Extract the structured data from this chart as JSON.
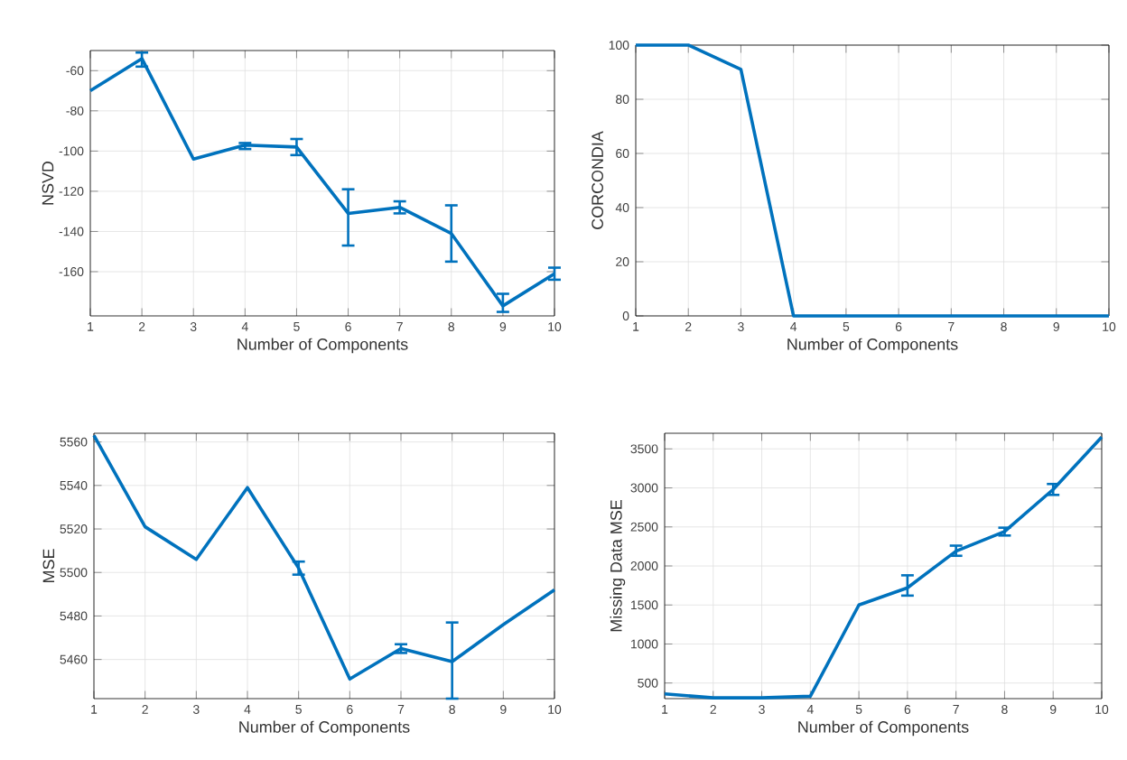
{
  "chart_data": [
    {
      "type": "line",
      "xlabel": "Number of Components",
      "ylabel": "NSVD",
      "x": [
        1,
        2,
        3,
        4,
        5,
        6,
        7,
        8,
        9,
        10
      ],
      "xlim": [
        1,
        10
      ],
      "xticks": [
        1,
        2,
        3,
        4,
        5,
        6,
        7,
        8,
        9,
        10
      ],
      "ylim": [
        -182,
        -50
      ],
      "yticks": [
        -160,
        -140,
        -120,
        -100,
        -80,
        -60
      ],
      "grid": true,
      "color": "#0072bd",
      "values": [
        -70,
        -54,
        -104,
        -97,
        -98,
        -131,
        -128,
        -141,
        -177,
        -161
      ],
      "errors": [
        null,
        [
          -58,
          -51
        ],
        null,
        [
          -99,
          -96
        ],
        [
          -102,
          -94
        ],
        [
          -147,
          -119
        ],
        [
          -131,
          -125
        ],
        [
          -155,
          -127
        ],
        [
          -180,
          -171
        ],
        [
          -164,
          -158
        ]
      ]
    },
    {
      "type": "line",
      "xlabel": "Number of Components",
      "ylabel": "CORCONDIA",
      "x": [
        1,
        2,
        3,
        4,
        5,
        6,
        7,
        8,
        9,
        10
      ],
      "xlim": [
        1,
        10
      ],
      "xticks": [
        1,
        2,
        3,
        4,
        5,
        6,
        7,
        8,
        9,
        10
      ],
      "ylim": [
        0,
        100
      ],
      "yticks": [
        0,
        20,
        40,
        60,
        80,
        100
      ],
      "grid": true,
      "color": "#0072bd",
      "values": [
        100,
        100,
        91,
        0,
        0,
        0,
        0,
        0,
        0,
        0
      ]
    },
    {
      "type": "line",
      "xlabel": "Number of Components",
      "ylabel": "MSE",
      "x": [
        1,
        2,
        3,
        4,
        5,
        6,
        7,
        8,
        9,
        10
      ],
      "xlim": [
        1,
        10
      ],
      "xticks": [
        1,
        2,
        3,
        4,
        5,
        6,
        7,
        8,
        9,
        10
      ],
      "ylim": [
        5442,
        5564
      ],
      "yticks": [
        5460,
        5480,
        5500,
        5520,
        5540,
        5560
      ],
      "grid": true,
      "color": "#0072bd",
      "values": [
        5563,
        5521,
        5506,
        5539,
        5502,
        5451,
        5465,
        5459,
        5476,
        5492
      ],
      "errors": [
        null,
        null,
        null,
        null,
        [
          5499,
          5505
        ],
        null,
        [
          5463,
          5467
        ],
        [
          5442,
          5477
        ],
        null,
        null
      ]
    },
    {
      "type": "line",
      "xlabel": "Number of Components",
      "ylabel": "Missing Data MSE",
      "x": [
        1,
        2,
        3,
        4,
        5,
        6,
        7,
        8,
        9,
        10
      ],
      "xlim": [
        1,
        10
      ],
      "xticks": [
        1,
        2,
        3,
        4,
        5,
        6,
        7,
        8,
        9,
        10
      ],
      "ylim": [
        300,
        3700
      ],
      "yticks": [
        500,
        1000,
        1500,
        2000,
        2500,
        3000,
        3500
      ],
      "grid": true,
      "color": "#0072bd",
      "values": [
        360,
        310,
        310,
        330,
        1500,
        1720,
        2190,
        2440,
        2980,
        3650
      ],
      "errors": [
        null,
        null,
        null,
        null,
        null,
        [
          1620,
          1880
        ],
        [
          2130,
          2260
        ],
        [
          2390,
          2490
        ],
        [
          2910,
          3050
        ],
        null
      ]
    }
  ]
}
